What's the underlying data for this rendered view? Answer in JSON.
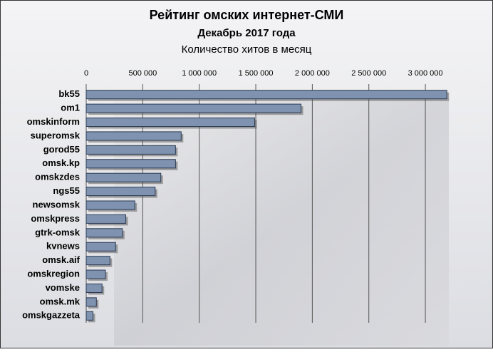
{
  "chart_data": {
    "type": "bar",
    "orientation": "horizontal",
    "title": "Рейтинг омских интернет-СМИ",
    "subtitle": "Декабрь 2017 года",
    "x_label": "Количество хитов в месяц",
    "categories": [
      "bk55",
      "om1",
      "omskinform",
      "superomsk",
      "gorod55",
      "omsk.kp",
      "omskzdes",
      "ngs55",
      "newsomsk",
      "omskpress",
      "gtrk-omsk",
      "kvnews",
      "omsk.aif",
      "omskregion",
      "vomske",
      "omsk.mk",
      "omskgazzeta"
    ],
    "values": [
      3190000,
      1900000,
      1490000,
      840000,
      790000,
      790000,
      660000,
      610000,
      430000,
      350000,
      320000,
      260000,
      210000,
      170000,
      140000,
      90000,
      60000
    ],
    "color": "#7f93b0",
    "xlim": [
      0,
      3200000
    ],
    "xticks": [
      0,
      {
        "value": 500000,
        "label": "500 000"
      },
      {
        "value": 1000000,
        "label": "1 000 000"
      },
      {
        "value": 1500000,
        "label": "1 500 000"
      },
      {
        "value": 2000000,
        "label": "2 000 000"
      },
      {
        "value": 2500000,
        "label": "2 500 000"
      },
      {
        "value": 3000000,
        "label": "3 000 000"
      }
    ],
    "grid": true
  }
}
